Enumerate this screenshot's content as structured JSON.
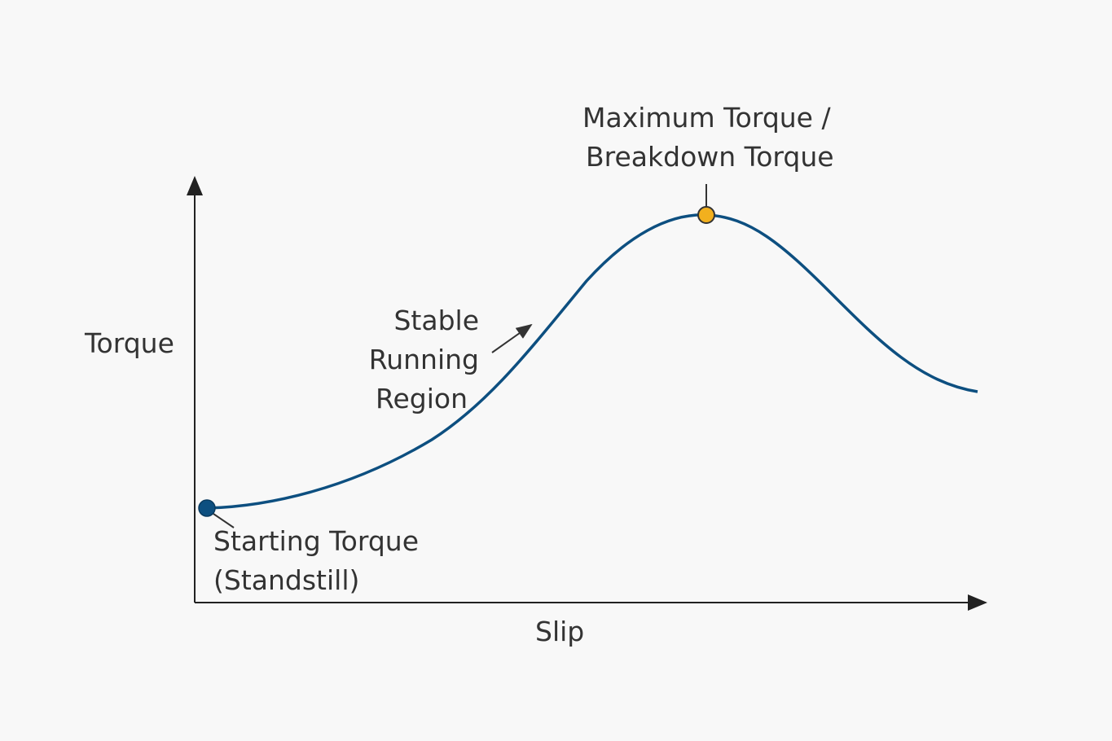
{
  "diagram": {
    "y_axis_label": "Torque",
    "x_axis_label": "Slip",
    "annotations": {
      "max_torque": [
        "Maximum Torque /",
        "Breakdown Torque"
      ],
      "stable_region": [
        "Stable",
        "Running",
        "Region"
      ],
      "starting_torque": [
        "Starting Torque",
        "(Standstill)"
      ]
    },
    "colors": {
      "curve": "#0d4f80",
      "start_point": "#0d4f80",
      "max_point": "#f2b01e",
      "axis": "#222222",
      "text": "#333333"
    }
  }
}
